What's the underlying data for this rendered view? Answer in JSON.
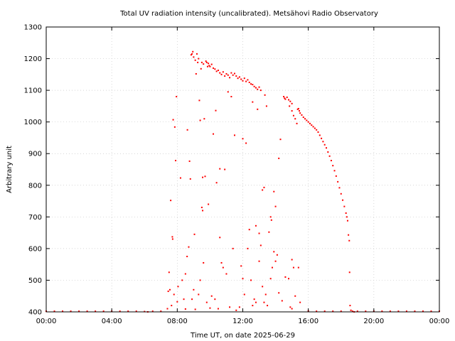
{
  "chart_data": {
    "type": "scatter",
    "title": "Total UV radiation intensity (uncalibrated). Metsähovi Radio Observatory",
    "xlabel": "Time UT, on date 2025-06-29",
    "ylabel": "Arbitrary unit",
    "xlim": [
      0,
      24
    ],
    "ylim": [
      400,
      1300
    ],
    "x_unit": "hours UT",
    "x_ticks": [
      0,
      4,
      8,
      12,
      16,
      20,
      24
    ],
    "x_tick_labels": [
      "00:00",
      "04:00",
      "08:00",
      "12:00",
      "16:00",
      "20:00",
      "00:00"
    ],
    "y_ticks": [
      400,
      500,
      600,
      700,
      800,
      900,
      1000,
      1100,
      1200,
      1300
    ],
    "y_tick_labels": [
      "400",
      "500",
      "600",
      "700",
      "800",
      "900",
      "1000",
      "1100",
      "1200",
      "1300"
    ],
    "grid": true,
    "marker_color": "#ff0000",
    "series": [
      {
        "name": "",
        "points": [
          [
            0.0,
            402
          ],
          [
            0.5,
            402
          ],
          [
            1.0,
            402
          ],
          [
            1.5,
            402
          ],
          [
            2.0,
            402
          ],
          [
            2.5,
            402
          ],
          [
            3.0,
            402
          ],
          [
            3.5,
            402
          ],
          [
            4.0,
            402
          ],
          [
            4.5,
            402
          ],
          [
            5.0,
            402
          ],
          [
            5.5,
            402
          ],
          [
            6.0,
            401
          ],
          [
            6.2,
            400
          ],
          [
            6.5,
            402
          ],
          [
            7.0,
            402
          ],
          [
            7.4,
            410
          ],
          [
            7.45,
            465
          ],
          [
            7.5,
            525
          ],
          [
            7.55,
            470
          ],
          [
            7.6,
            752
          ],
          [
            7.65,
            420
          ],
          [
            7.7,
            637
          ],
          [
            7.72,
            630
          ],
          [
            7.75,
            1007
          ],
          [
            7.8,
            455
          ],
          [
            7.85,
            984
          ],
          [
            7.9,
            878
          ],
          [
            7.95,
            1080
          ],
          [
            8.0,
            432
          ],
          [
            8.05,
            480
          ],
          [
            8.2,
            823
          ],
          [
            8.3,
            500
          ],
          [
            8.4,
            440
          ],
          [
            8.5,
            409
          ],
          [
            8.6,
            575
          ],
          [
            8.62,
            975
          ],
          [
            8.7,
            605
          ],
          [
            8.75,
            876
          ],
          [
            8.8,
            820
          ],
          [
            8.85,
            1212
          ],
          [
            8.9,
            1215
          ],
          [
            8.95,
            1222
          ],
          [
            9.0,
            1205
          ],
          [
            9.05,
            645
          ],
          [
            9.1,
            1195
          ],
          [
            9.15,
            1152
          ],
          [
            9.2,
            1215
          ],
          [
            9.25,
            1188
          ],
          [
            9.3,
            1200
          ],
          [
            9.35,
            1068
          ],
          [
            9.4,
            1005
          ],
          [
            9.45,
            1168
          ],
          [
            9.5,
            1188
          ],
          [
            9.55,
            825
          ],
          [
            9.6,
            1183
          ],
          [
            9.65,
            1010
          ],
          [
            9.7,
            828
          ],
          [
            9.75,
            1192
          ],
          [
            9.8,
            1188
          ],
          [
            9.85,
            1175
          ],
          [
            9.9,
            1185
          ],
          [
            9.95,
            1178
          ],
          [
            10.0,
            1175
          ],
          [
            10.1,
            1182
          ],
          [
            10.2,
            1170
          ],
          [
            10.3,
            1167
          ],
          [
            10.4,
            1160
          ],
          [
            10.5,
            1163
          ],
          [
            10.6,
            1155
          ],
          [
            10.7,
            1150
          ],
          [
            10.8,
            1158
          ],
          [
            10.9,
            1145
          ],
          [
            11.0,
            1152
          ],
          [
            11.1,
            1148
          ],
          [
            11.2,
            1140
          ],
          [
            11.3,
            1155
          ],
          [
            11.4,
            1148
          ],
          [
            11.5,
            1153
          ],
          [
            11.6,
            1145
          ],
          [
            11.7,
            1138
          ],
          [
            11.8,
            1142
          ],
          [
            11.9,
            1135
          ],
          [
            12.0,
            1130
          ],
          [
            12.1,
            1138
          ],
          [
            12.2,
            1128
          ],
          [
            12.3,
            1133
          ],
          [
            12.4,
            1125
          ],
          [
            12.5,
            1120
          ],
          [
            12.6,
            1118
          ],
          [
            12.7,
            1112
          ],
          [
            12.8,
            1108
          ],
          [
            12.9,
            1103
          ],
          [
            13.0,
            1110
          ],
          [
            13.1,
            1100
          ],
          [
            9.5,
            730
          ],
          [
            9.55,
            720
          ],
          [
            9.9,
            740
          ],
          [
            10.2,
            962
          ],
          [
            10.35,
            1036
          ],
          [
            10.4,
            808
          ],
          [
            10.6,
            852
          ],
          [
            10.9,
            850
          ],
          [
            11.1,
            1095
          ],
          [
            11.3,
            1080
          ],
          [
            11.5,
            958
          ],
          [
            12.0,
            947
          ],
          [
            12.2,
            933
          ],
          [
            12.4,
            660
          ],
          [
            12.6,
            1063
          ],
          [
            12.8,
            672
          ],
          [
            12.9,
            1040
          ],
          [
            13.0,
            648
          ],
          [
            13.2,
            785
          ],
          [
            13.3,
            793
          ],
          [
            13.35,
            1085
          ],
          [
            13.45,
            1050
          ],
          [
            13.6,
            652
          ],
          [
            13.7,
            700
          ],
          [
            13.75,
            690
          ],
          [
            13.9,
            780
          ],
          [
            14.0,
            733
          ],
          [
            14.2,
            885
          ],
          [
            14.3,
            945
          ],
          [
            14.5,
            1080
          ],
          [
            14.55,
            1075
          ],
          [
            14.6,
            1072
          ],
          [
            14.7,
            1078
          ],
          [
            14.8,
            1070
          ],
          [
            14.9,
            1065
          ],
          [
            15.0,
            1058
          ],
          [
            14.85,
            1050
          ],
          [
            15.0,
            1035
          ],
          [
            15.1,
            1020
          ],
          [
            15.2,
            1010
          ],
          [
            15.3,
            995
          ],
          [
            15.35,
            1040
          ],
          [
            15.4,
            1042
          ],
          [
            15.45,
            1035
          ],
          [
            15.5,
            1028
          ],
          [
            15.6,
            1022
          ],
          [
            15.7,
            1015
          ],
          [
            15.8,
            1010
          ],
          [
            15.9,
            1005
          ],
          [
            16.0,
            1000
          ],
          [
            16.1,
            995
          ],
          [
            16.2,
            990
          ],
          [
            16.3,
            985
          ],
          [
            16.4,
            980
          ],
          [
            16.5,
            975
          ],
          [
            16.6,
            968
          ],
          [
            16.7,
            958
          ],
          [
            16.8,
            948
          ],
          [
            16.9,
            938
          ],
          [
            17.0,
            928
          ],
          [
            17.1,
            918
          ],
          [
            17.2,
            905
          ],
          [
            17.3,
            892
          ],
          [
            17.4,
            878
          ],
          [
            17.5,
            862
          ],
          [
            17.6,
            846
          ],
          [
            17.7,
            829
          ],
          [
            17.8,
            811
          ],
          [
            17.9,
            792
          ],
          [
            18.0,
            773
          ],
          [
            18.1,
            753
          ],
          [
            18.2,
            733
          ],
          [
            18.3,
            712
          ],
          [
            18.35,
            700
          ],
          [
            18.4,
            688
          ],
          [
            18.45,
            643
          ],
          [
            18.5,
            625
          ],
          [
            18.52,
            525
          ],
          [
            18.55,
            420
          ],
          [
            18.6,
            405
          ],
          [
            18.7,
            402
          ],
          [
            18.8,
            400
          ],
          [
            19.0,
            402
          ],
          [
            19.5,
            402
          ],
          [
            20.0,
            402
          ],
          [
            20.5,
            402
          ],
          [
            21.0,
            402
          ],
          [
            21.5,
            402
          ],
          [
            22.0,
            402
          ],
          [
            22.5,
            402
          ],
          [
            23.0,
            402
          ],
          [
            23.5,
            402
          ],
          [
            24.0,
            402
          ],
          [
            8.5,
            520
          ],
          [
            8.9,
            440
          ],
          [
            9.0,
            470
          ],
          [
            9.1,
            408
          ],
          [
            9.3,
            455
          ],
          [
            9.4,
            500
          ],
          [
            9.6,
            555
          ],
          [
            9.8,
            430
          ],
          [
            10.0,
            412
          ],
          [
            10.1,
            450
          ],
          [
            10.3,
            440
          ],
          [
            10.5,
            410
          ],
          [
            10.6,
            635
          ],
          [
            10.7,
            555
          ],
          [
            10.8,
            540
          ],
          [
            11.0,
            520
          ],
          [
            11.2,
            415
          ],
          [
            11.4,
            600
          ],
          [
            11.6,
            405
          ],
          [
            11.8,
            415
          ],
          [
            11.9,
            545
          ],
          [
            12.0,
            505
          ],
          [
            12.1,
            455
          ],
          [
            12.3,
            600
          ],
          [
            12.5,
            500
          ],
          [
            12.6,
            420
          ],
          [
            12.7,
            440
          ],
          [
            12.8,
            430
          ],
          [
            13.0,
            560
          ],
          [
            13.1,
            610
          ],
          [
            13.2,
            480
          ],
          [
            13.3,
            430
          ],
          [
            13.4,
            455
          ],
          [
            13.5,
            420
          ],
          [
            13.7,
            505
          ],
          [
            13.8,
            540
          ],
          [
            13.9,
            590
          ],
          [
            14.0,
            560
          ],
          [
            14.1,
            580
          ],
          [
            14.2,
            460
          ],
          [
            14.4,
            435
          ],
          [
            14.6,
            510
          ],
          [
            14.8,
            505
          ],
          [
            15.0,
            565
          ],
          [
            15.1,
            540
          ],
          [
            15.2,
            450
          ],
          [
            15.4,
            540
          ],
          [
            15.5,
            430
          ],
          [
            14.9,
            415
          ],
          [
            15.0,
            410
          ],
          [
            16.0,
            403
          ],
          [
            16.5,
            402
          ],
          [
            17.0,
            402
          ],
          [
            17.5,
            402
          ],
          [
            18.0,
            402
          ]
        ]
      }
    ]
  }
}
